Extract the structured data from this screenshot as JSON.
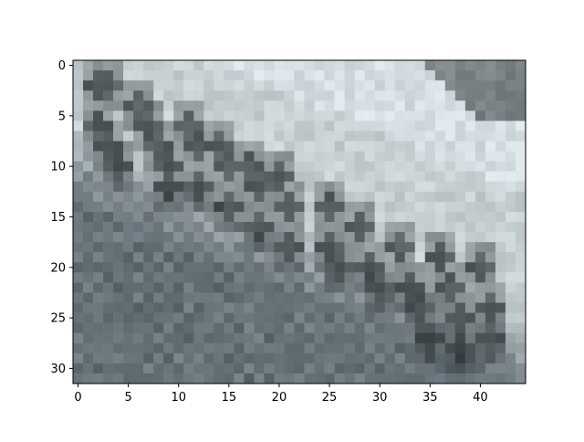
{
  "chart_data": {
    "type": "heatmap",
    "image_shape": [
      32,
      45
    ],
    "x_ticks": [
      0,
      5,
      10,
      15,
      20,
      25,
      30,
      35,
      40
    ],
    "y_ticks": [
      0,
      5,
      10,
      15,
      20,
      25,
      30
    ],
    "xlim": [
      -0.5,
      44.5
    ],
    "ylim": [
      31.5,
      -0.5
    ],
    "x_tick_labels": [
      "0",
      "5",
      "10",
      "15",
      "20",
      "25",
      "30",
      "35",
      "40"
    ],
    "y_tick_labels": [
      "0",
      "5",
      "10",
      "15",
      "20",
      "25",
      "30"
    ],
    "grid": false,
    "content": "low-resolution grayscale-blue photo of a curved surface with dark stamped digits"
  },
  "colors": {
    "axis": "#000000",
    "light": "#c6d0d3",
    "mid": "#8f999d",
    "dark": "#2f3638",
    "highlight": "#dfe8ee",
    "shadow": "#6c787f"
  }
}
